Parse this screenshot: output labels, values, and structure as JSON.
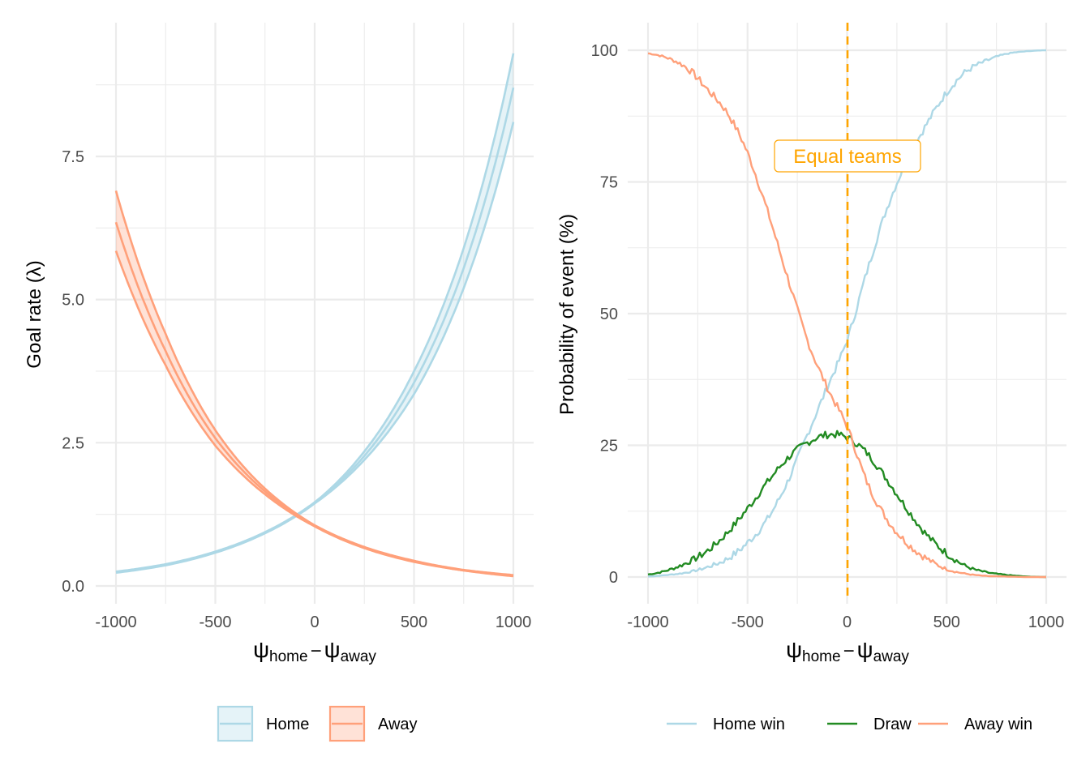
{
  "chart_data": [
    {
      "type": "line",
      "panel": "left",
      "title": "",
      "xlabel": "ψ_home − ψ_away",
      "xlabel_parts": {
        "main1": "ψ",
        "sub1": "home",
        "op": "−",
        "main2": "ψ",
        "sub2": "away"
      },
      "ylabel": "Goal rate (λ)",
      "xlim": [
        -1000,
        1000
      ],
      "ylim": [
        0,
        9.3
      ],
      "x_ticks": [
        "-1000",
        "-500",
        "0",
        "500",
        "1000"
      ],
      "x_tick_values": [
        -1000,
        -500,
        0,
        500,
        1000
      ],
      "y_ticks": [
        "0.0",
        "2.5",
        "5.0",
        "7.5"
      ],
      "y_tick_values": [
        0,
        2.5,
        5.0,
        7.5
      ],
      "grid": true,
      "legend_position": "bottom",
      "x": [
        -1000,
        -750,
        -500,
        -250,
        0,
        250,
        500,
        750,
        1000
      ],
      "series": [
        {
          "name": "Home",
          "color": "#ADD8E6",
          "values": [
            0.24,
            0.37,
            0.59,
            0.93,
            1.45,
            2.27,
            3.55,
            5.55,
            8.7
          ],
          "lower": [
            0.23,
            0.36,
            0.58,
            0.92,
            1.44,
            2.2,
            3.35,
            5.2,
            8.1
          ],
          "upper": [
            0.25,
            0.38,
            0.6,
            0.94,
            1.46,
            2.35,
            3.75,
            5.9,
            9.3
          ]
        },
        {
          "name": "Away",
          "color": "#FFA07A",
          "values": [
            6.35,
            4.1,
            2.58,
            1.65,
            1.05,
            0.67,
            0.43,
            0.27,
            0.18
          ],
          "lower": [
            5.85,
            3.85,
            2.45,
            1.6,
            1.04,
            0.66,
            0.42,
            0.27,
            0.17
          ],
          "upper": [
            6.9,
            4.4,
            2.72,
            1.7,
            1.06,
            0.68,
            0.44,
            0.28,
            0.19
          ]
        }
      ]
    },
    {
      "type": "line",
      "panel": "right",
      "title": "",
      "xlabel": "ψ_home − ψ_away",
      "xlabel_parts": {
        "main1": "ψ",
        "sub1": "home",
        "op": "−",
        "main2": "ψ",
        "sub2": "away"
      },
      "ylabel": "Probability of event (%)",
      "xlim": [
        -1000,
        1000
      ],
      "ylim": [
        0,
        100
      ],
      "x_ticks": [
        "-1000",
        "-500",
        "0",
        "500",
        "1000"
      ],
      "x_tick_values": [
        -1000,
        -500,
        0,
        500,
        1000
      ],
      "y_ticks": [
        "0",
        "25",
        "50",
        "75",
        "100"
      ],
      "y_tick_values": [
        0,
        25,
        50,
        75,
        100
      ],
      "grid": true,
      "legend_position": "bottom",
      "annotations": [
        {
          "type": "vline",
          "x": 0,
          "style": "dashed",
          "color": "#FFA500"
        },
        {
          "type": "label",
          "text": "Equal teams",
          "x": 0,
          "y": 80,
          "color": "#FFA500"
        }
      ],
      "x": [
        -1000,
        -900,
        -800,
        -700,
        -600,
        -500,
        -400,
        -300,
        -200,
        -100,
        0,
        100,
        200,
        300,
        400,
        500,
        600,
        700,
        800,
        900,
        1000
      ],
      "series": [
        {
          "name": "Home win",
          "color": "#ADD8E6",
          "values": [
            0.1,
            0.4,
            0.9,
            1.9,
            3.5,
            6.5,
            11,
            18,
            27,
            36,
            45,
            58,
            70,
            79,
            86,
            92,
            96,
            98,
            99.3,
            99.8,
            100
          ]
        },
        {
          "name": "Draw",
          "color": "#228B22",
          "values": [
            0.5,
            1.3,
            2.8,
            5,
            8.5,
            13,
            18,
            22.5,
            25.5,
            27,
            26.5,
            23.5,
            18.5,
            13,
            8,
            4.5,
            2,
            0.9,
            0.4,
            0.1,
            0
          ]
        },
        {
          "name": "Away win",
          "color": "#FFA07A",
          "values": [
            99.4,
            98.5,
            96.5,
            92.5,
            88,
            80.5,
            69.5,
            57,
            45,
            36,
            28.5,
            18,
            11,
            6.5,
            3.5,
            1.5,
            0.6,
            0.2,
            0.1,
            0,
            0
          ]
        }
      ]
    }
  ],
  "legends": {
    "left": [
      {
        "label": "Home",
        "color": "#ADD8E6",
        "fill": "#E5F3F8"
      },
      {
        "label": "Away",
        "color": "#FFA07A",
        "fill": "#FFE2D7"
      }
    ],
    "right": [
      {
        "label": "Home win",
        "color": "#ADD8E6"
      },
      {
        "label": "Draw",
        "color": "#228B22"
      },
      {
        "label": "Away win",
        "color": "#FFA07A"
      }
    ]
  },
  "annotation": {
    "label": "Equal teams"
  }
}
